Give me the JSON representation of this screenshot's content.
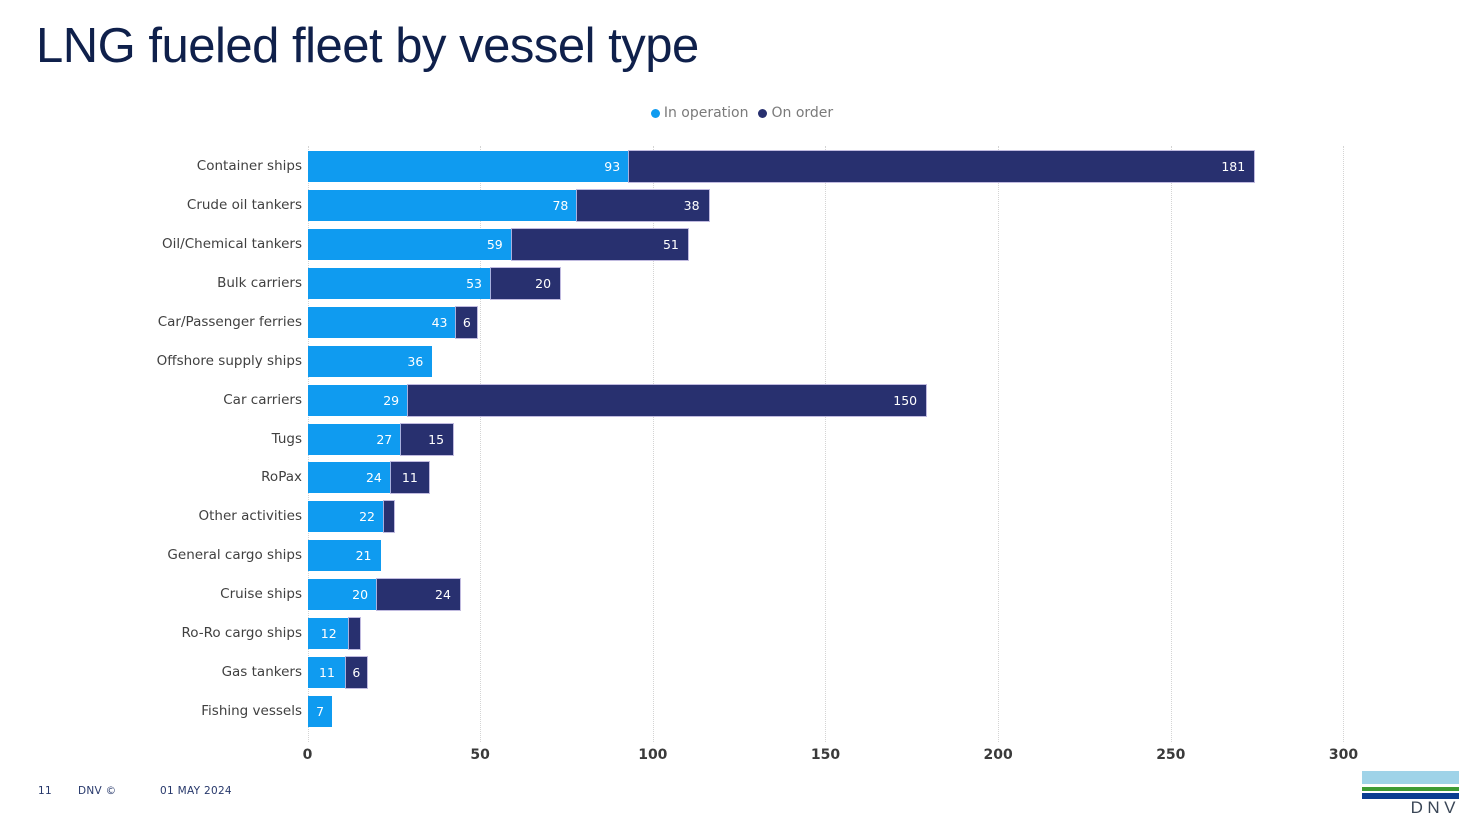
{
  "title": "LNG fueled fleet by vessel type",
  "chart_data": {
    "type": "bar",
    "orientation": "horizontal",
    "stacked": true,
    "title": "LNG fueled fleet by vessel type",
    "categories": [
      "Container ships",
      "Crude oil tankers",
      "Oil/Chemical tankers",
      "Bulk carriers",
      "Car/Passenger ferries",
      "Offshore supply ships",
      "Car carriers",
      "Tugs",
      "RoPax",
      "Other activities",
      "General cargo ships",
      "Cruise ships",
      "Ro-Ro cargo ships",
      "Gas tankers",
      "Fishing vessels"
    ],
    "series": [
      {
        "name": "In operation",
        "color": "#0F9BF0",
        "values": [
          93,
          78,
          59,
          53,
          43,
          36,
          29,
          27,
          24,
          22,
          21,
          20,
          12,
          11,
          7
        ]
      },
      {
        "name": "On order",
        "color": "#28306F",
        "values": [
          181,
          38,
          51,
          20,
          6,
          0,
          150,
          15,
          11,
          3,
          0,
          24,
          3,
          6,
          0
        ]
      }
    ],
    "xlabel": "",
    "ylabel": "",
    "x_ticks": [
      0,
      50,
      100,
      150,
      200,
      250,
      300
    ],
    "xlim": [
      0,
      335
    ],
    "grid": "vertical-dotted",
    "legend_position": "top-center",
    "value_labels": "shown inside segments when value >= 5"
  },
  "legend": {
    "items": [
      {
        "label": "In operation",
        "color": "#0F9BF0"
      },
      {
        "label": "On order",
        "color": "#28306F"
      }
    ]
  },
  "footer": {
    "page_number": "11",
    "copyright": "DNV ©",
    "date": "01 MAY 2024"
  },
  "logo": {
    "text": "DNV",
    "sky_color": "#9FD3E8",
    "green_color": "#3F9C35",
    "navy_color": "#0B3D91"
  }
}
